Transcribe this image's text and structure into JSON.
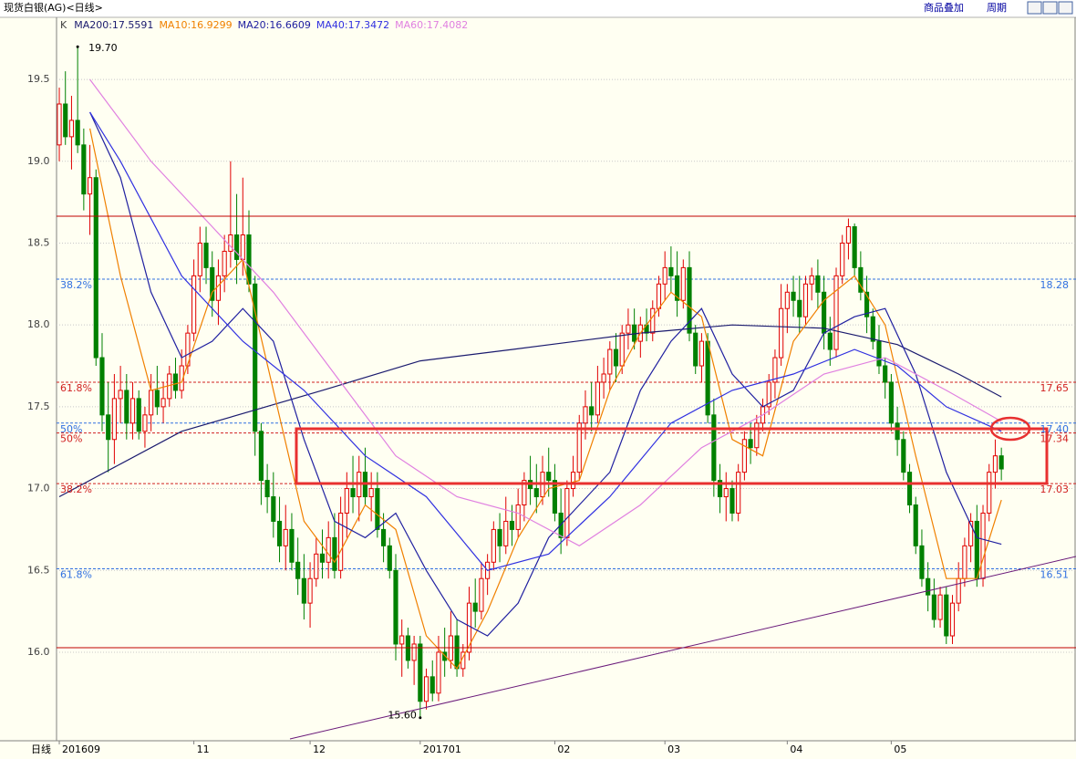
{
  "header": {
    "title": "现货白银(AG)<日线>",
    "buttons": [
      "商品叠加",
      "周期"
    ]
  },
  "chart_data": {
    "type": "candlestick",
    "legend_prefix": "K",
    "period_label": "日线",
    "up_color": "#e00000",
    "down_color": "#008000",
    "ylim": [
      15.459,
      19.874
    ],
    "yticks": [
      {
        "value": 16,
        "label": "16.0"
      },
      16.5,
      {
        "value": 17,
        "label": "17.0"
      },
      17.5,
      {
        "value": 18,
        "label": "18.0"
      },
      18.5,
      {
        "value": 19,
        "label": "19.0"
      },
      19.5
    ],
    "xlim": [
      -0.45,
      166.2
    ],
    "xticks": [
      {
        "value": 0,
        "label": "201609"
      },
      {
        "value": 22,
        "label": "11"
      },
      {
        "value": 41,
        "label": "12"
      },
      {
        "value": 59,
        "label": "201701"
      },
      {
        "value": 81,
        "label": "02"
      },
      {
        "value": 99,
        "label": "03"
      },
      {
        "value": 119,
        "label": "04"
      },
      {
        "value": 136,
        "label": "05"
      }
    ],
    "grid": true,
    "ohlc": [
      [
        19.1,
        19.45,
        19.0,
        19.35
      ],
      [
        19.35,
        19.55,
        19.1,
        19.15
      ],
      [
        19.15,
        19.4,
        18.95,
        19.25
      ],
      [
        19.25,
        19.7,
        19.05,
        19.1
      ],
      [
        19.1,
        19.2,
        18.7,
        18.8
      ],
      [
        18.8,
        19.1,
        18.55,
        18.9
      ],
      [
        18.9,
        18.95,
        17.75,
        17.8
      ],
      [
        17.8,
        17.95,
        17.35,
        17.45
      ],
      [
        17.45,
        17.65,
        17.1,
        17.3
      ],
      [
        17.3,
        17.7,
        17.15,
        17.55
      ],
      [
        17.55,
        17.75,
        17.4,
        17.6
      ],
      [
        17.6,
        17.7,
        17.3,
        17.4
      ],
      [
        17.4,
        17.65,
        17.3,
        17.55
      ],
      [
        17.55,
        17.6,
        17.3,
        17.35
      ],
      [
        17.35,
        17.5,
        17.25,
        17.45
      ],
      [
        17.45,
        17.7,
        17.35,
        17.6
      ],
      [
        17.6,
        17.75,
        17.45,
        17.5
      ],
      [
        17.5,
        17.65,
        17.4,
        17.55
      ],
      [
        17.55,
        17.75,
        17.5,
        17.7
      ],
      [
        17.7,
        17.8,
        17.55,
        17.6
      ],
      [
        17.6,
        17.85,
        17.55,
        17.75
      ],
      [
        17.75,
        18.0,
        17.7,
        17.95
      ],
      [
        17.95,
        18.4,
        17.9,
        18.3
      ],
      [
        18.3,
        18.6,
        18.2,
        18.5
      ],
      [
        18.5,
        18.6,
        18.25,
        18.35
      ],
      [
        18.35,
        18.45,
        18.05,
        18.15
      ],
      [
        18.15,
        18.4,
        18.0,
        18.3
      ],
      [
        18.3,
        18.55,
        18.2,
        18.45
      ],
      [
        18.45,
        19.0,
        18.35,
        18.55
      ],
      [
        18.55,
        18.8,
        18.25,
        18.4
      ],
      [
        18.4,
        18.9,
        18.3,
        18.55
      ],
      [
        18.55,
        18.7,
        18.2,
        18.25
      ],
      [
        18.25,
        18.3,
        17.2,
        17.35
      ],
      [
        17.35,
        17.4,
        16.9,
        17.05
      ],
      [
        17.05,
        17.15,
        16.85,
        16.95
      ],
      [
        16.95,
        17.1,
        16.7,
        16.8
      ],
      [
        16.8,
        16.95,
        16.55,
        16.65
      ],
      [
        16.65,
        16.9,
        16.5,
        16.75
      ],
      [
        16.75,
        16.85,
        16.5,
        16.55
      ],
      [
        16.55,
        16.7,
        16.35,
        16.45
      ],
      [
        16.45,
        16.6,
        16.2,
        16.3
      ],
      [
        16.3,
        16.55,
        16.15,
        16.45
      ],
      [
        16.45,
        16.7,
        16.4,
        16.6
      ],
      [
        16.6,
        16.75,
        16.45,
        16.55
      ],
      [
        16.55,
        16.8,
        16.45,
        16.7
      ],
      [
        16.7,
        16.85,
        16.45,
        16.5
      ],
      [
        16.5,
        16.95,
        16.45,
        16.85
      ],
      [
        16.85,
        17.1,
        16.7,
        17.0
      ],
      [
        17.0,
        17.2,
        16.85,
        16.95
      ],
      [
        16.95,
        17.2,
        16.8,
        17.1
      ],
      [
        17.1,
        17.25,
        16.9,
        16.95
      ],
      [
        16.95,
        17.1,
        16.8,
        17.0
      ],
      [
        17.0,
        17.1,
        16.7,
        16.75
      ],
      [
        16.75,
        16.85,
        16.55,
        16.65
      ],
      [
        16.65,
        16.7,
        16.45,
        16.5
      ],
      [
        16.5,
        16.6,
        15.95,
        16.05
      ],
      [
        16.05,
        16.2,
        15.85,
        16.1
      ],
      [
        16.1,
        16.15,
        15.9,
        15.95
      ],
      [
        15.95,
        16.1,
        15.8,
        16.05
      ],
      [
        16.05,
        16.1,
        15.6,
        15.7
      ],
      [
        15.7,
        15.9,
        15.65,
        15.85
      ],
      [
        15.85,
        15.95,
        15.7,
        15.75
      ],
      [
        15.75,
        16.1,
        15.7,
        16.0
      ],
      [
        16.0,
        16.15,
        15.85,
        15.95
      ],
      [
        15.95,
        16.25,
        15.9,
        16.1
      ],
      [
        16.1,
        16.2,
        15.85,
        15.9
      ],
      [
        15.9,
        16.05,
        15.85,
        16.0
      ],
      [
        16.0,
        16.4,
        15.95,
        16.3
      ],
      [
        16.3,
        16.45,
        16.15,
        16.25
      ],
      [
        16.25,
        16.55,
        16.2,
        16.45
      ],
      [
        16.45,
        16.6,
        16.35,
        16.55
      ],
      [
        16.55,
        16.8,
        16.5,
        16.75
      ],
      [
        16.75,
        16.85,
        16.55,
        16.65
      ],
      [
        16.65,
        16.95,
        16.6,
        16.8
      ],
      [
        16.8,
        16.9,
        16.65,
        16.75
      ],
      [
        16.75,
        17.0,
        16.7,
        16.9
      ],
      [
        16.9,
        17.1,
        16.8,
        17.05
      ],
      [
        17.05,
        17.2,
        16.9,
        17.0
      ],
      [
        17.0,
        17.15,
        16.85,
        16.95
      ],
      [
        16.95,
        17.2,
        16.9,
        17.1
      ],
      [
        17.1,
        17.25,
        16.95,
        17.05
      ],
      [
        17.05,
        17.15,
        16.8,
        16.85
      ],
      [
        16.85,
        17.0,
        16.6,
        16.7
      ],
      [
        16.7,
        17.05,
        16.65,
        17.0
      ],
      [
        17.0,
        17.2,
        16.95,
        17.1
      ],
      [
        17.1,
        17.45,
        17.05,
        17.4
      ],
      [
        17.4,
        17.6,
        17.3,
        17.5
      ],
      [
        17.5,
        17.65,
        17.35,
        17.45
      ],
      [
        17.45,
        17.75,
        17.4,
        17.65
      ],
      [
        17.65,
        17.8,
        17.55,
        17.7
      ],
      [
        17.7,
        17.9,
        17.6,
        17.85
      ],
      [
        17.85,
        17.95,
        17.65,
        17.75
      ],
      [
        17.75,
        18.0,
        17.7,
        17.95
      ],
      [
        17.95,
        18.1,
        17.85,
        18.0
      ],
      [
        18.0,
        18.1,
        17.85,
        17.9
      ],
      [
        17.9,
        18.05,
        17.8,
        18.0
      ],
      [
        18.0,
        18.1,
        17.9,
        17.95
      ],
      [
        17.95,
        18.15,
        17.9,
        18.1
      ],
      [
        18.1,
        18.3,
        18.05,
        18.25
      ],
      [
        18.25,
        18.45,
        18.15,
        18.35
      ],
      [
        18.35,
        18.48,
        18.2,
        18.3
      ],
      [
        18.3,
        18.45,
        18.05,
        18.15
      ],
      [
        18.15,
        18.4,
        18.1,
        18.35
      ],
      [
        18.35,
        18.45,
        17.9,
        17.95
      ],
      [
        17.95,
        18.0,
        17.7,
        17.75
      ],
      [
        17.75,
        17.95,
        17.65,
        17.9
      ],
      [
        17.9,
        17.95,
        17.4,
        17.45
      ],
      [
        17.45,
        17.55,
        16.95,
        17.05
      ],
      [
        17.05,
        17.15,
        16.85,
        16.95
      ],
      [
        16.95,
        17.1,
        16.8,
        17.0
      ],
      [
        17.0,
        17.05,
        16.8,
        16.85
      ],
      [
        16.85,
        17.15,
        16.8,
        17.1
      ],
      [
        17.1,
        17.35,
        17.05,
        17.3
      ],
      [
        17.3,
        17.4,
        17.15,
        17.25
      ],
      [
        17.25,
        17.45,
        17.2,
        17.4
      ],
      [
        17.4,
        17.55,
        17.35,
        17.5
      ],
      [
        17.5,
        17.7,
        17.45,
        17.65
      ],
      [
        17.65,
        17.85,
        17.55,
        17.8
      ],
      [
        17.8,
        18.25,
        17.75,
        18.1
      ],
      [
        18.1,
        18.25,
        17.95,
        18.2
      ],
      [
        18.2,
        18.3,
        18.05,
        18.15
      ],
      [
        18.15,
        18.3,
        17.95,
        18.05
      ],
      [
        18.05,
        18.3,
        18.0,
        18.25
      ],
      [
        18.25,
        18.35,
        18.15,
        18.3
      ],
      [
        18.3,
        18.4,
        18.1,
        18.2
      ],
      [
        18.2,
        18.3,
        17.85,
        17.95
      ],
      [
        17.95,
        18.05,
        17.75,
        17.85
      ],
      [
        17.85,
        18.35,
        17.8,
        18.3
      ],
      [
        18.3,
        18.55,
        18.25,
        18.5
      ],
      [
        18.5,
        18.65,
        18.4,
        18.6
      ],
      [
        18.6,
        18.62,
        18.3,
        18.35
      ],
      [
        18.35,
        18.45,
        18.15,
        18.2
      ],
      [
        18.2,
        18.3,
        17.95,
        18.05
      ],
      [
        18.05,
        18.1,
        17.85,
        17.9
      ],
      [
        17.9,
        18.0,
        17.7,
        17.75
      ],
      [
        17.75,
        17.8,
        17.55,
        17.65
      ],
      [
        17.65,
        17.7,
        17.35,
        17.4
      ],
      [
        17.4,
        17.5,
        17.2,
        17.3
      ],
      [
        17.3,
        17.35,
        17.05,
        17.1
      ],
      [
        17.1,
        17.15,
        16.85,
        16.9
      ],
      [
        16.9,
        16.95,
        16.6,
        16.65
      ],
      [
        16.65,
        16.75,
        16.4,
        16.45
      ],
      [
        16.45,
        16.55,
        16.25,
        16.35
      ],
      [
        16.35,
        16.45,
        16.15,
        16.2
      ],
      [
        16.2,
        16.4,
        16.15,
        16.35
      ],
      [
        16.35,
        16.4,
        16.05,
        16.1
      ],
      [
        16.1,
        16.35,
        16.05,
        16.3
      ],
      [
        16.3,
        16.55,
        16.25,
        16.45
      ],
      [
        16.45,
        16.7,
        16.4,
        16.65
      ],
      [
        16.65,
        16.85,
        16.55,
        16.8
      ],
      [
        16.8,
        16.9,
        16.4,
        16.45
      ],
      [
        16.45,
        16.9,
        16.4,
        16.85
      ],
      [
        16.85,
        17.15,
        16.8,
        17.1
      ],
      [
        17.1,
        17.3,
        17.0,
        17.2
      ],
      [
        17.2,
        17.25,
        17.05,
        17.12
      ]
    ],
    "series": [
      {
        "name": "MA200:17.5591",
        "color": "#1a1a6e",
        "x": [
          0,
          20,
          43,
          59,
          74,
          95,
          110,
          125,
          137,
          147,
          154
        ],
        "values": [
          16.95,
          17.35,
          17.6,
          17.78,
          17.85,
          17.95,
          18.0,
          17.98,
          17.88,
          17.7,
          17.56
        ]
      },
      {
        "name": "MA10:16.9299",
        "color": "#f08000",
        "x": [
          5,
          10,
          15,
          20,
          25,
          30,
          35,
          40,
          45,
          50,
          55,
          60,
          65,
          70,
          75,
          80,
          85,
          90,
          95,
          100,
          105,
          110,
          115,
          120,
          125,
          130,
          135,
          140,
          145,
          150,
          154
        ],
        "values": [
          19.2,
          18.3,
          17.6,
          17.65,
          18.2,
          18.4,
          17.6,
          16.8,
          16.55,
          16.9,
          16.75,
          16.1,
          15.9,
          16.25,
          16.7,
          17.0,
          17.05,
          17.6,
          17.95,
          18.2,
          18.05,
          17.3,
          17.2,
          17.9,
          18.15,
          18.3,
          18.0,
          17.2,
          16.45,
          16.45,
          16.93
        ]
      },
      {
        "name": "MA20:16.6609",
        "color": "#2020a0",
        "x": [
          5,
          10,
          15,
          20,
          25,
          30,
          35,
          40,
          45,
          50,
          55,
          60,
          65,
          70,
          75,
          80,
          85,
          90,
          95,
          100,
          105,
          110,
          115,
          120,
          125,
          130,
          135,
          140,
          145,
          150,
          154
        ],
        "values": [
          19.3,
          18.9,
          18.2,
          17.8,
          17.9,
          18.1,
          17.9,
          17.3,
          16.8,
          16.7,
          16.85,
          16.5,
          16.2,
          16.1,
          16.3,
          16.7,
          16.9,
          17.1,
          17.6,
          17.9,
          18.1,
          17.7,
          17.5,
          17.6,
          17.95,
          18.05,
          18.1,
          17.7,
          17.1,
          16.7,
          16.66
        ]
      },
      {
        "name": "MA40:17.3472",
        "color": "#3030e0",
        "x": [
          5,
          10,
          20,
          30,
          40,
          50,
          60,
          70,
          80,
          90,
          100,
          110,
          120,
          130,
          137,
          145,
          154
        ],
        "values": [
          19.3,
          19.0,
          18.3,
          17.9,
          17.6,
          17.2,
          16.95,
          16.5,
          16.6,
          16.95,
          17.4,
          17.6,
          17.7,
          17.85,
          17.75,
          17.5,
          17.35
        ]
      },
      {
        "name": "MA60:17.4082",
        "color": "#e080e0",
        "x": [
          5,
          15,
          25,
          35,
          45,
          55,
          65,
          75,
          85,
          95,
          105,
          115,
          125,
          135,
          145,
          154
        ],
        "values": [
          19.5,
          19.0,
          18.6,
          18.2,
          17.7,
          17.2,
          16.95,
          16.85,
          16.65,
          16.9,
          17.25,
          17.45,
          17.7,
          17.8,
          17.6,
          17.41
        ]
      }
    ],
    "levels": [
      {
        "label": "38.2%",
        "value": 18.28,
        "color": "#3070e0"
      },
      {
        "label": "61.8%",
        "value": 17.65,
        "color": "#d02020"
      },
      {
        "label": "50%",
        "value": {
          "value": 17.4,
          "label": "17.40"
        },
        "color": "#3070e0"
      },
      {
        "label": "50%",
        "value": 17.34,
        "color": "#d02020"
      },
      {
        "label": "38.2%",
        "value": 17.03,
        "color": "#d02020"
      },
      {
        "label": "61.8%",
        "value": 16.51,
        "color": "#3070e0"
      }
    ],
    "annotations": [
      {
        "label": "19.70",
        "value": 19.7,
        "index": 3
      },
      {
        "label": "15.60",
        "value": 15.6,
        "index": 59
      }
    ]
  }
}
